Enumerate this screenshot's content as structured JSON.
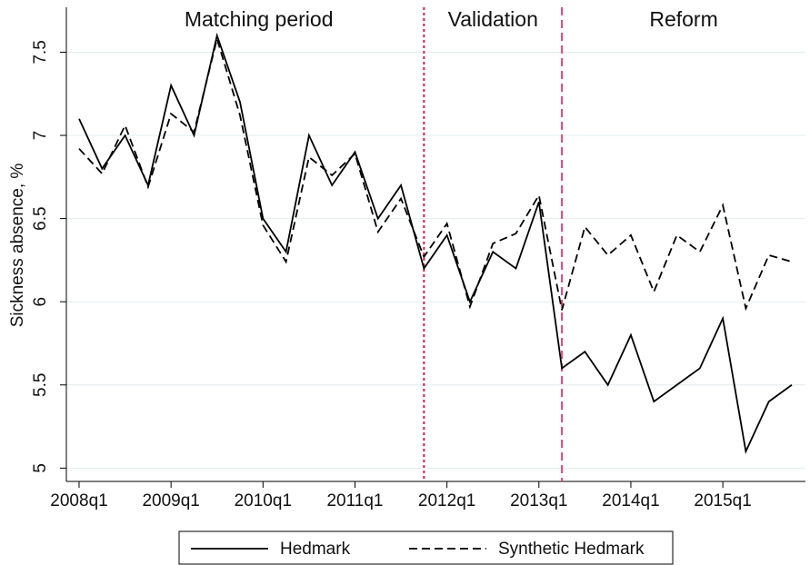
{
  "chart_data": {
    "type": "line",
    "y_label": "Sickness absence, %",
    "categories": [
      "2008q1",
      null,
      null,
      null,
      "2009q1",
      null,
      null,
      null,
      "2010q1",
      null,
      null,
      null,
      "2011q1",
      null,
      null,
      null,
      "2012q1",
      null,
      null,
      null,
      "2013q1",
      null,
      null,
      null,
      "2014q1",
      null,
      null,
      null,
      "2015q1",
      null,
      null,
      null
    ],
    "series": [
      {
        "name": "Hedmark",
        "color": "#000000",
        "dash": "solid",
        "values": [
          7.1,
          6.8,
          7.0,
          6.7,
          7.3,
          7.0,
          7.6,
          7.2,
          6.5,
          6.3,
          7.0,
          6.7,
          6.9,
          6.5,
          6.7,
          6.2,
          6.4,
          6.0,
          6.3,
          6.2,
          6.6,
          5.6,
          5.7,
          5.5,
          5.8,
          5.4,
          5.5,
          5.6,
          5.9,
          5.1,
          5.4,
          5.5
        ]
      },
      {
        "name": "Synthetic Hedmark",
        "color": "#000000",
        "dash": "dashed",
        "values": [
          6.92,
          6.77,
          7.06,
          6.69,
          7.13,
          7.02,
          7.58,
          7.12,
          6.46,
          6.24,
          6.87,
          6.76,
          6.89,
          6.42,
          6.62,
          6.27,
          6.47,
          5.97,
          6.35,
          6.41,
          6.64,
          5.95,
          6.45,
          6.28,
          6.4,
          6.06,
          6.4,
          6.3,
          6.58,
          5.96,
          6.28,
          6.24
        ]
      }
    ],
    "ylim": [
      4.92,
      7.77
    ],
    "yticks": [
      5,
      5.5,
      6,
      6.5,
      7,
      7.5
    ],
    "grid": true,
    "vlines": [
      {
        "at": 15,
        "color": "#d0204a",
        "dash": "dotted"
      },
      {
        "at": 21,
        "color": "#e0457a",
        "dash": "dashed"
      }
    ],
    "periods": [
      "Matching period",
      "Validation",
      "Reform"
    ],
    "legend": "bottom"
  }
}
